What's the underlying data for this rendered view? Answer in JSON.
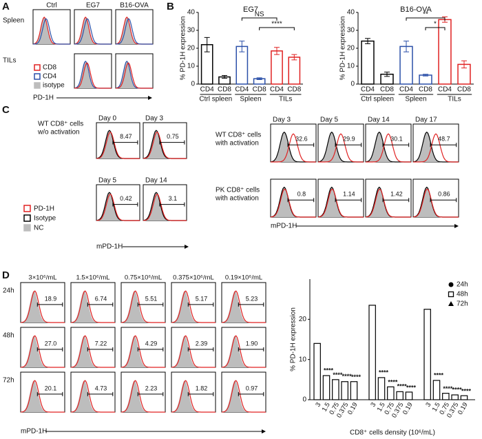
{
  "panel_labels": {
    "a": "A",
    "b": "B",
    "c": "C",
    "d": "D"
  },
  "panel_a": {
    "columns": [
      "Ctrl",
      "EG7",
      "B16-OVA"
    ],
    "rows": [
      "Spleen",
      "TILs"
    ],
    "legend": [
      "CD8",
      "CD4",
      "isotype"
    ],
    "x_label": "PD-1H"
  },
  "chart_data": [
    {
      "type": "bar",
      "title": "EG7",
      "y_label": "% PD-1H expression",
      "categories": [
        "CD4",
        "CD8",
        "CD4",
        "CD8",
        "CD4",
        "CD8"
      ],
      "groups": [
        "Ctrl spleen",
        "Spleen",
        "TILs"
      ],
      "values": [
        22,
        4,
        21,
        3,
        18.5,
        15
      ],
      "errors": [
        4,
        0.8,
        3,
        0.5,
        2,
        1.5
      ],
      "colors": [
        "#000000",
        "#000000",
        "#2a4fa8",
        "#2a4fa8",
        "#e02020",
        "#e02020"
      ],
      "ylim": [
        0,
        40
      ],
      "yticks": [
        0,
        10,
        20,
        30,
        40
      ],
      "annotations": [
        {
          "label": "NS",
          "from": 2,
          "to": 4
        },
        {
          "label": "****",
          "from": 3,
          "to": 5
        }
      ]
    },
    {
      "type": "bar",
      "title": "B16-OVA",
      "y_label": "% PD-1H expression",
      "categories": [
        "CD4",
        "CD8",
        "CD4",
        "CD8",
        "CD4",
        "CD8"
      ],
      "groups": [
        "Ctrl spleen",
        "Spleen",
        "TILs"
      ],
      "values": [
        24,
        5.5,
        21,
        5,
        36,
        11
      ],
      "errors": [
        1.5,
        1.2,
        3,
        0.5,
        1.5,
        2
      ],
      "colors": [
        "#000000",
        "#000000",
        "#2a4fa8",
        "#2a4fa8",
        "#e02020",
        "#e02020"
      ],
      "ylim": [
        0,
        40
      ],
      "yticks": [
        0,
        10,
        20,
        30,
        40
      ],
      "annotations": [
        {
          "label": "**",
          "from": 2,
          "to": 4
        },
        {
          "label": "*",
          "from": 3,
          "to": 4
        }
      ]
    },
    {
      "type": "grouped_bar",
      "y_label": "% PD-1H expression",
      "x_label": "CD8⁺ cells density (10⁶/mL)",
      "categories": [
        "3",
        "1.5",
        "0.75",
        "0.375",
        "0.19"
      ],
      "series": [
        {
          "name": "24h",
          "marker": "circle",
          "values": [
            14,
            6,
            5,
            4.5,
            4.5
          ],
          "significance": [
            "****",
            "****",
            "****",
            "****"
          ]
        },
        {
          "name": "48h",
          "marker": "square",
          "values": [
            23.5,
            5.5,
            3.2,
            2,
            1.9
          ],
          "significance": [
            "****",
            "****",
            "****",
            "****"
          ]
        },
        {
          "name": "72h",
          "marker": "triangle",
          "values": [
            22.5,
            4.8,
            1.6,
            1.2,
            1
          ],
          "significance": [
            "****",
            "****",
            "****",
            "****"
          ]
        }
      ],
      "ylim": [
        0,
        30
      ],
      "yticks": [
        0,
        10,
        20
      ],
      "legend": "upper right"
    }
  ],
  "panel_c": {
    "left_title": [
      "WT CD8⁺ cells",
      "w/o activation"
    ],
    "left_plots": [
      {
        "day": "Day 0",
        "gate": "8.47"
      },
      {
        "day": "Day 3",
        "gate": "0.75"
      },
      {
        "day": "Day 5",
        "gate": "0.42"
      },
      {
        "day": "Day 14",
        "gate": "3.1"
      }
    ],
    "legend": [
      "PD-1H",
      "Isotype",
      "NC"
    ],
    "x_label_left": "mPD-1H",
    "right_rows": [
      {
        "title": [
          "WT CD8⁺ cells",
          "with activation"
        ],
        "plots": [
          {
            "day": "Day 3",
            "gate": "32.6"
          },
          {
            "day": "Day 5",
            "gate": "29.9"
          },
          {
            "day": "Day 14",
            "gate": "30.1"
          },
          {
            "day": "Day 17",
            "gate": "48.7"
          }
        ]
      },
      {
        "title": [
          "PK CD8⁺ cells",
          "with activation"
        ],
        "plots": [
          {
            "gate": "0.8"
          },
          {
            "gate": "1.14"
          },
          {
            "gate": "1.42"
          },
          {
            "gate": "0.86"
          }
        ]
      }
    ],
    "x_label_right": "mPD-1H"
  },
  "panel_d": {
    "densities": [
      "3×10⁶/mL",
      "1.5×10⁶/mL",
      "0.75×10⁶/mL",
      "0.375×10⁶/mL",
      "0.19×10⁶/mL"
    ],
    "times": [
      "24h",
      "48h",
      "72h"
    ],
    "gates": [
      [
        "18.9",
        "6.74",
        "5.51",
        "5.17",
        "5.23"
      ],
      [
        "27.0",
        "7.22",
        "4.29",
        "2.39",
        "1.90"
      ],
      [
        "20.1",
        "4.73",
        "2.23",
        "1.82",
        "0.97"
      ]
    ],
    "x_label": "mPD-1H"
  }
}
